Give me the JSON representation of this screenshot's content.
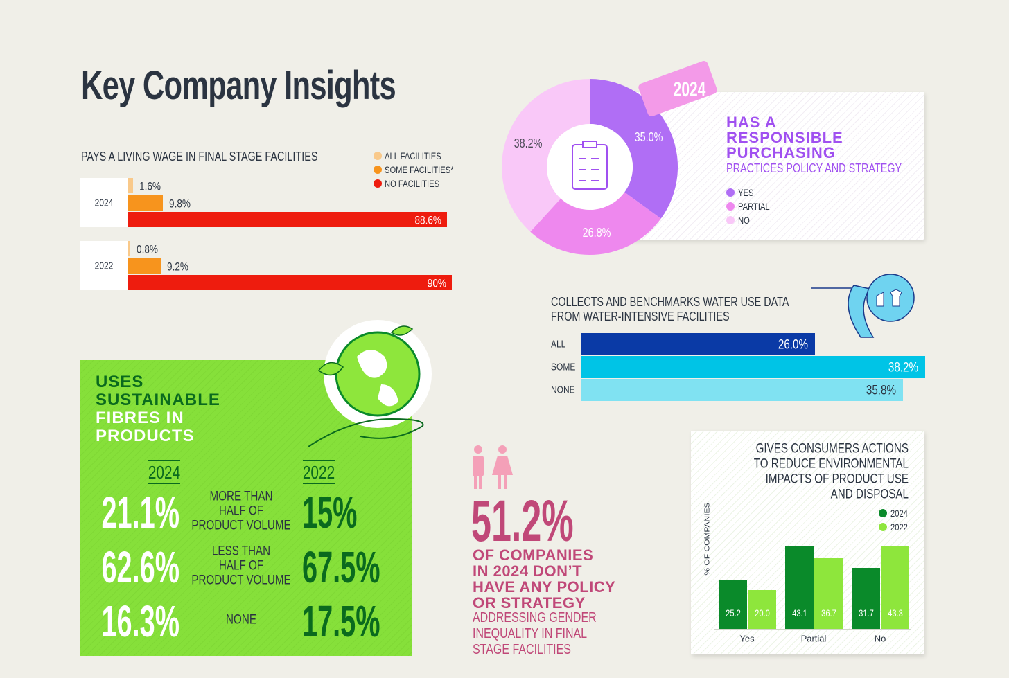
{
  "title": "Key Company Insights",
  "chart_data": [
    {
      "type": "hbar",
      "title": "PAYS A LIVING WAGE IN FINAL STAGE FACILITIES",
      "categories": [
        "2024",
        "2022"
      ],
      "series": [
        {
          "name": "ALL FACILITIES",
          "color": "#f9c98a",
          "values": [
            1.6,
            0.8
          ],
          "value_labels": [
            "1.6%",
            "0.8%"
          ]
        },
        {
          "name": "SOME FACILITIES*",
          "color": "#f7941d",
          "values": [
            9.8,
            9.2
          ],
          "value_labels": [
            "9.8%",
            "9.2%"
          ]
        },
        {
          "name": "NO FACILITIES",
          "color": "#ee1c0e",
          "values": [
            88.6,
            90
          ],
          "value_labels": [
            "88.6%",
            "90%"
          ]
        }
      ]
    },
    {
      "type": "donut",
      "tag": "2024",
      "title": [
        "HAS A",
        "RESPONSIBLE",
        "PURCHASING"
      ],
      "subtitle": "PRACTICES POLICY AND STRATEGY",
      "categories": [
        "YES",
        "PARTIAL",
        "NO"
      ],
      "values": [
        35.0,
        26.8,
        38.2
      ],
      "value_labels": [
        "35.0%",
        "26.8%",
        "38.2%"
      ],
      "colors": [
        "#b06ef5",
        "#ee88ee",
        "#f9c8f8"
      ]
    },
    {
      "type": "hbar-single",
      "title": [
        "COLLECTS AND BENCHMARKS WATER USE DATA",
        "FROM WATER-INTENSIVE FACILITIES"
      ],
      "categories": [
        "ALL",
        "SOME",
        "NONE"
      ],
      "values": [
        26.0,
        38.2,
        35.8
      ],
      "value_labels": [
        "26.0%",
        "38.2%",
        "35.8%"
      ],
      "colors": [
        "#0a3aa6",
        "#00c4e6",
        "#80e2f2"
      ]
    },
    {
      "type": "grouped-bar",
      "title": [
        "GIVES CONSUMERS ACTIONS",
        "TO REDUCE ENVIRONMENTAL",
        "IMPACTS OF PRODUCT USE",
        "AND DISPOSAL"
      ],
      "y_label": "% OF COMPANIES",
      "categories": [
        "Yes",
        "Partial",
        "No"
      ],
      "series": [
        {
          "name": "2024",
          "color": "#0a8a2a",
          "values": [
            25.2,
            43.1,
            31.7
          ]
        },
        {
          "name": "2022",
          "color": "#8ee63c",
          "values": [
            20.0,
            36.7,
            43.3
          ],
          "value_labels": [
            "20.0",
            "36.7",
            "43.3"
          ]
        }
      ]
    }
  ],
  "fibres": {
    "title": [
      "USES",
      "SUSTAINABLE",
      "FIBRES IN",
      "PRODUCTS"
    ],
    "years": [
      "2024",
      "2022"
    ],
    "rows": [
      {
        "y2024": "21.1%",
        "label": [
          "MORE THAN",
          "HALF OF",
          "PRODUCT VOLUME"
        ],
        "y2022": "15%"
      },
      {
        "y2024": "62.6%",
        "label": [
          "LESS THAN",
          "HALF OF",
          "PRODUCT VOLUME"
        ],
        "y2022": "67.5%"
      },
      {
        "y2024": "16.3%",
        "label": [
          "NONE"
        ],
        "y2022": "17.5%"
      }
    ]
  },
  "gender": {
    "stat": "51.2%",
    "headline": [
      "OF COMPANIES",
      "IN 2024 DON’T",
      "HAVE ANY POLICY",
      "OR STRATEGY"
    ],
    "text": [
      "ADDRESSING GENDER",
      "INEQUALITY IN FINAL",
      "STAGE FACILITIES"
    ]
  }
}
